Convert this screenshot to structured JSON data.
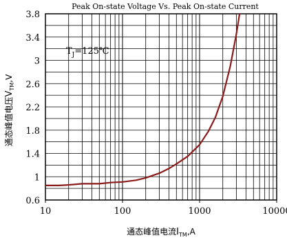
{
  "chart_data": {
    "type": "line",
    "title": "Peak On-state Voltage Vs. Peak On-state Current",
    "xlabel": "通态峰值电流 I_TM,A",
    "ylabel": "通态峰值电压 V_TM,V",
    "xlabel_parts": {
      "prefix": "通态峰值电流",
      "symbol": "I",
      "sub": "TM",
      "unit": ",A"
    },
    "ylabel_parts": {
      "prefix": "通态峰值电压",
      "symbol": "V",
      "sub": "TM",
      "unit": ",V"
    },
    "annotation": {
      "symbol": "T",
      "sub": "J",
      "text": "=125℃"
    },
    "x_scale": "log",
    "xlim": [
      10,
      10000
    ],
    "ylim": [
      0.6,
      3.8
    ],
    "x_ticks": [
      "10",
      "100",
      "1000",
      "10000"
    ],
    "y_ticks": [
      "0.6",
      "1",
      "1.4",
      "1.8",
      "2.2",
      "2.6",
      "3",
      "3.4",
      "3.8"
    ],
    "grid": true,
    "line_color": "#8b1a1a",
    "series": [
      {
        "x": [
          10,
          15,
          20,
          30,
          50,
          70,
          100,
          150,
          200,
          300,
          400,
          500,
          700,
          1000,
          1300,
          1600,
          2000,
          2500,
          3000,
          3300
        ],
        "y": [
          0.85,
          0.85,
          0.86,
          0.88,
          0.88,
          0.9,
          0.91,
          0.94,
          0.98,
          1.06,
          1.14,
          1.22,
          1.35,
          1.55,
          1.78,
          2.02,
          2.38,
          2.9,
          3.45,
          3.8
        ]
      }
    ]
  }
}
